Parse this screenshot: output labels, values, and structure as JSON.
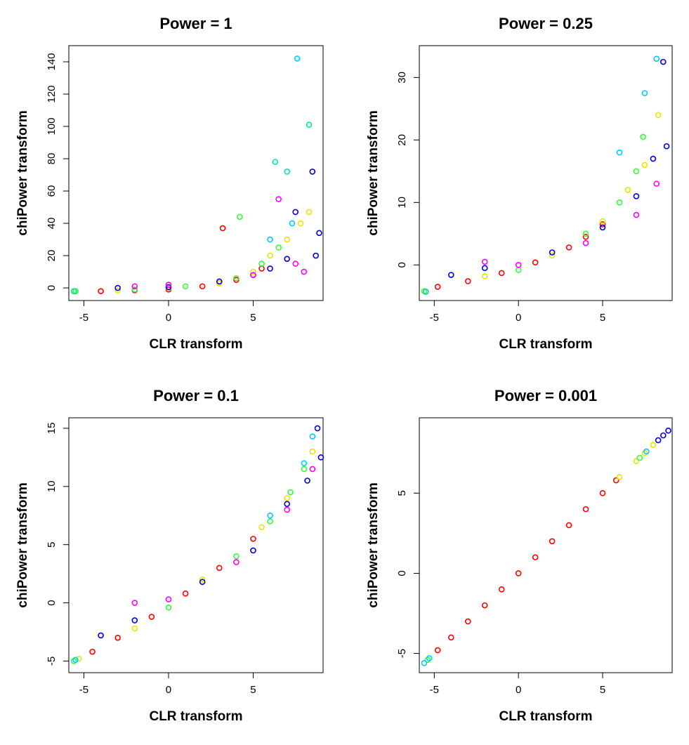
{
  "chart_data": [
    {
      "type": "scatter",
      "title": "Power = 1",
      "x_label": "CLR transform",
      "y_label": "chiPower transform",
      "xlim": [
        -5.89,
        9.13
      ],
      "ylim": [
        -7.8,
        150
      ],
      "xticks": [
        -5,
        0,
        5
      ],
      "yticks": [
        0,
        20,
        40,
        60,
        80,
        100,
        120,
        140
      ],
      "series": [
        {
          "color": "#ff0000",
          "x": [
            -5.5,
            -4,
            -2,
            0,
            2,
            3,
            4,
            5,
            5.5,
            3.2
          ],
          "y": [
            -2,
            -2,
            -1.5,
            -1,
            1,
            3,
            5,
            8,
            12,
            37
          ]
        },
        {
          "color": "#e6e600",
          "x": [
            -5.6,
            -3,
            0,
            3,
            5,
            6,
            7,
            7.8,
            8.3
          ],
          "y": [
            -2,
            -1.5,
            0,
            3,
            10,
            20,
            30,
            40,
            47
          ]
        },
        {
          "color": "#33ff33",
          "x": [
            -5.5,
            -2,
            1,
            4,
            5.5,
            6.5,
            4.2
          ],
          "y": [
            -2,
            -1,
            1,
            6,
            15,
            25,
            44
          ]
        },
        {
          "color": "#00e6b3",
          "x": [
            -5.6,
            7,
            6.3,
            8.3
          ],
          "y": [
            -2,
            72,
            78,
            101
          ]
        },
        {
          "color": "#00ccff",
          "x": [
            7.6,
            6,
            7.3
          ],
          "y": [
            142,
            30,
            40
          ]
        },
        {
          "color": "#0000dd",
          "x": [
            -3,
            0,
            3,
            6,
            7,
            7.5,
            8.5,
            8.7,
            8.9
          ],
          "y": [
            0,
            0.5,
            4,
            12,
            18,
            47,
            72,
            20,
            34
          ]
        },
        {
          "color": "#ff00ff",
          "x": [
            -2,
            0,
            5,
            6.5,
            7.5,
            8
          ],
          "y": [
            1,
            2,
            8,
            55,
            15,
            10
          ]
        }
      ]
    },
    {
      "type": "scatter",
      "title": "Power = 0.25",
      "x_label": "CLR transform",
      "y_label": "chiPower transform",
      "xlim": [
        -5.89,
        9.13
      ],
      "ylim": [
        -5.7,
        35.1
      ],
      "xticks": [
        -5,
        0,
        5
      ],
      "yticks": [
        0,
        10,
        20,
        30
      ],
      "series": [
        {
          "color": "#ff0000",
          "x": [
            -4.8,
            -3,
            -1,
            1,
            3,
            4,
            5
          ],
          "y": [
            -3.5,
            -2.6,
            -1.3,
            0.4,
            2.8,
            4.5,
            6.5
          ]
        },
        {
          "color": "#e6e600",
          "x": [
            -5.5,
            -2,
            2,
            5,
            6.5,
            7.5,
            8.3
          ],
          "y": [
            -4.2,
            -1.8,
            1.5,
            7,
            12,
            16,
            24
          ]
        },
        {
          "color": "#33ff33",
          "x": [
            -5.6,
            0,
            4,
            6,
            7,
            7.4
          ],
          "y": [
            -4.2,
            -0.8,
            5,
            10,
            15,
            20.5
          ]
        },
        {
          "color": "#00ccff",
          "x": [
            -5.5,
            6,
            7.5,
            8.2
          ],
          "y": [
            -4.3,
            18,
            27.5,
            33
          ]
        },
        {
          "color": "#0000dd",
          "x": [
            -4,
            -2,
            2,
            5,
            7,
            8,
            8.6,
            8.8
          ],
          "y": [
            -1.6,
            -0.5,
            2,
            6,
            11,
            17,
            32.5,
            19
          ]
        },
        {
          "color": "#ff00ff",
          "x": [
            -2,
            0,
            4,
            7,
            8.2
          ],
          "y": [
            0.5,
            0,
            3.5,
            8,
            13
          ]
        }
      ]
    },
    {
      "type": "scatter",
      "title": "Power = 0.1",
      "x_label": "CLR transform",
      "y_label": "chiPower transform",
      "xlim": [
        -5.89,
        9.13
      ],
      "ylim": [
        -6,
        15.9
      ],
      "xticks": [
        -5,
        0,
        5
      ],
      "yticks": [
        -5,
        0,
        5,
        10,
        15
      ],
      "series": [
        {
          "color": "#ff0000",
          "x": [
            -4.5,
            -3,
            -1,
            1,
            3,
            5
          ],
          "y": [
            -4.2,
            -3,
            -1.2,
            0.8,
            3,
            5.5
          ]
        },
        {
          "color": "#e6e600",
          "x": [
            -5.3,
            -2,
            2,
            5.5,
            7,
            8.5
          ],
          "y": [
            -4.8,
            -2.2,
            2,
            6.5,
            9,
            13
          ]
        },
        {
          "color": "#33ff33",
          "x": [
            -5.6,
            0,
            4,
            6,
            7.2,
            8
          ],
          "y": [
            -5,
            -0.4,
            4,
            7,
            9.5,
            11.5
          ]
        },
        {
          "color": "#00ccff",
          "x": [
            -5.5,
            6,
            8,
            8.5
          ],
          "y": [
            -4.9,
            7.5,
            12,
            14.3
          ]
        },
        {
          "color": "#0000dd",
          "x": [
            -4,
            -2,
            2,
            5,
            7,
            8.2,
            8.8,
            9
          ],
          "y": [
            -2.8,
            -1.5,
            1.8,
            4.5,
            8.5,
            10.5,
            15,
            12.5
          ]
        },
        {
          "color": "#ff00ff",
          "x": [
            -2,
            0,
            4,
            7,
            8.5
          ],
          "y": [
            0,
            0.3,
            3.5,
            8,
            11.5
          ]
        }
      ]
    },
    {
      "type": "scatter",
      "title": "Power = 0.001",
      "x_label": "CLR transform",
      "y_label": "chiPower transform",
      "xlim": [
        -5.89,
        9.13
      ],
      "ylim": [
        -6.2,
        9.7
      ],
      "xticks": [
        -5,
        0,
        5
      ],
      "yticks": [
        -5,
        0,
        5
      ],
      "series": [
        {
          "color": "#ff0000",
          "x": [
            -4.8,
            -4,
            -3,
            -2,
            -1,
            0,
            1,
            2,
            3,
            4,
            5,
            5.8
          ],
          "y": [
            -4.8,
            -4,
            -3,
            -2,
            -1,
            0,
            1,
            2,
            3,
            4,
            5,
            5.8
          ]
        },
        {
          "color": "#e6e600",
          "x": [
            6,
            7,
            7.5,
            8
          ],
          "y": [
            6,
            7,
            7.5,
            8
          ]
        },
        {
          "color": "#33ff33",
          "x": [
            -5.4,
            7.2
          ],
          "y": [
            -5.4,
            7.2
          ]
        },
        {
          "color": "#00ccff",
          "x": [
            -5.6,
            -5.3,
            7.6
          ],
          "y": [
            -5.6,
            -5.3,
            7.6
          ]
        },
        {
          "color": "#0000dd",
          "x": [
            8.3,
            8.6,
            8.9
          ],
          "y": [
            8.3,
            8.6,
            8.9
          ]
        }
      ]
    }
  ]
}
